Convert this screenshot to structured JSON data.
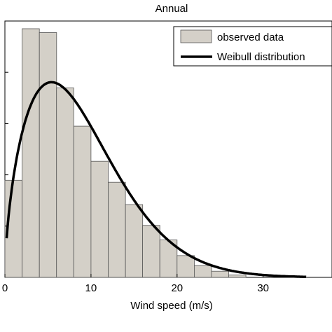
{
  "chart_data": {
    "type": "bar",
    "title": "Annual",
    "xlabel": "Wind speed (m/s)",
    "ylabel": "",
    "xlim": [
      0,
      38
    ],
    "ylim": [
      0,
      0.1
    ],
    "x_ticks": [
      0,
      10,
      20,
      30
    ],
    "x_tick_labels": [
      "0",
      "10",
      "20",
      "30"
    ],
    "grid": false,
    "legend_position": "top-right",
    "series": [
      {
        "name": "observed data",
        "kind": "histogram",
        "color": "#d4d0c8",
        "bin_width": 2,
        "bin_centers": [
          1,
          3,
          5,
          7,
          9,
          11,
          13,
          15,
          17,
          19,
          21,
          23,
          25,
          27
        ],
        "values": [
          0.0379,
          0.097,
          0.0955,
          0.0739,
          0.059,
          0.0453,
          0.0371,
          0.0284,
          0.0203,
          0.0146,
          0.0085,
          0.0046,
          0.0024,
          0.0009
        ]
      },
      {
        "name": "Weibull distribution",
        "kind": "line",
        "color": "#000000",
        "shape_k": 1.6,
        "scale_c": 10.0,
        "x_range": [
          0.2,
          35
        ]
      }
    ]
  }
}
